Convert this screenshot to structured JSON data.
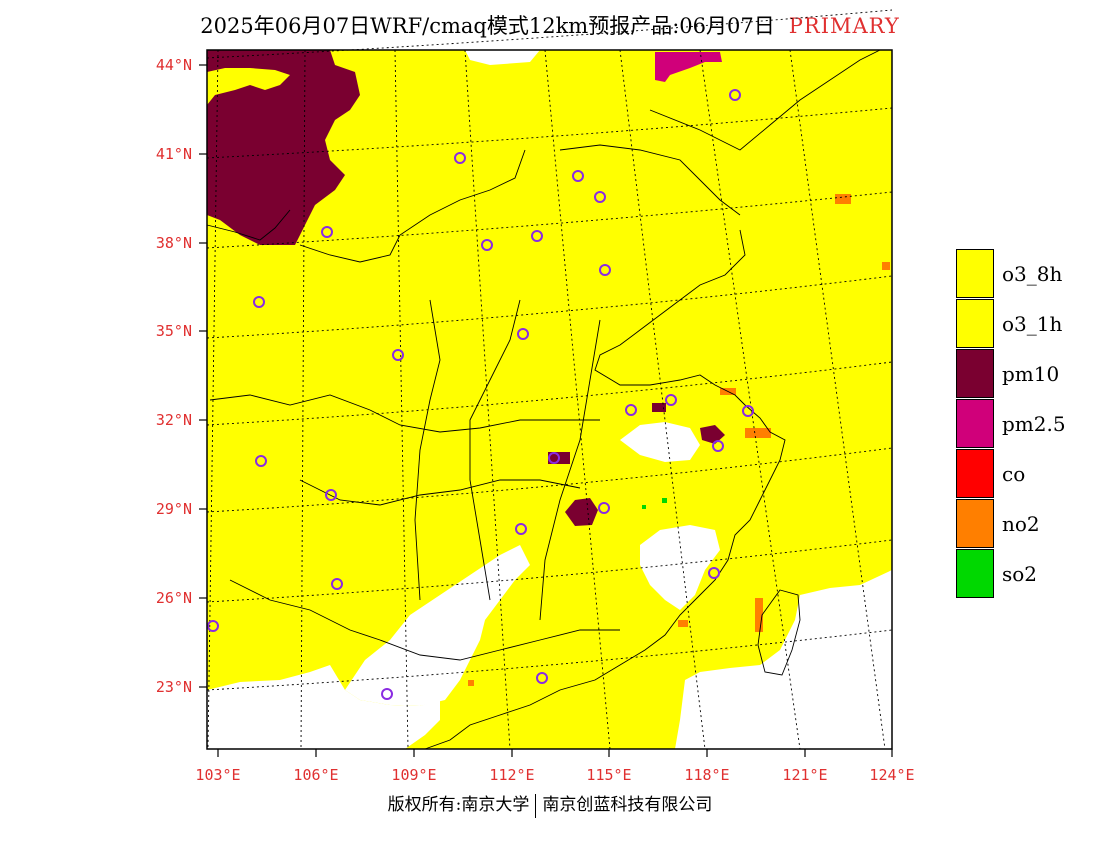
{
  "header": {
    "title": "2025年06月07日WRF/cmaq模式12km预报产品:06月07日",
    "tag": "PRIMARY"
  },
  "axes": {
    "lat_labels": [
      "44°N",
      "41°N",
      "38°N",
      "35°N",
      "32°N",
      "29°N",
      "26°N",
      "23°N"
    ],
    "lon_labels": [
      "103°E",
      "106°E",
      "109°E",
      "112°E",
      "115°E",
      "118°E",
      "121°E",
      "124°E"
    ]
  },
  "legend": {
    "items": [
      {
        "label": "o3_8h",
        "color": "#ffff00"
      },
      {
        "label": "o3_1h",
        "color": "#ffff00"
      },
      {
        "label": "pm10",
        "color": "#7a0030"
      },
      {
        "label": "pm2.5",
        "color": "#d0007a"
      },
      {
        "label": "co",
        "color": "#ff0000"
      },
      {
        "label": "no2",
        "color": "#ff7f00"
      },
      {
        "label": "so2",
        "color": "#00d800"
      }
    ]
  },
  "footer": {
    "left": "版权所有:南京大学",
    "right": "南京创蓝科技有限公司"
  }
}
